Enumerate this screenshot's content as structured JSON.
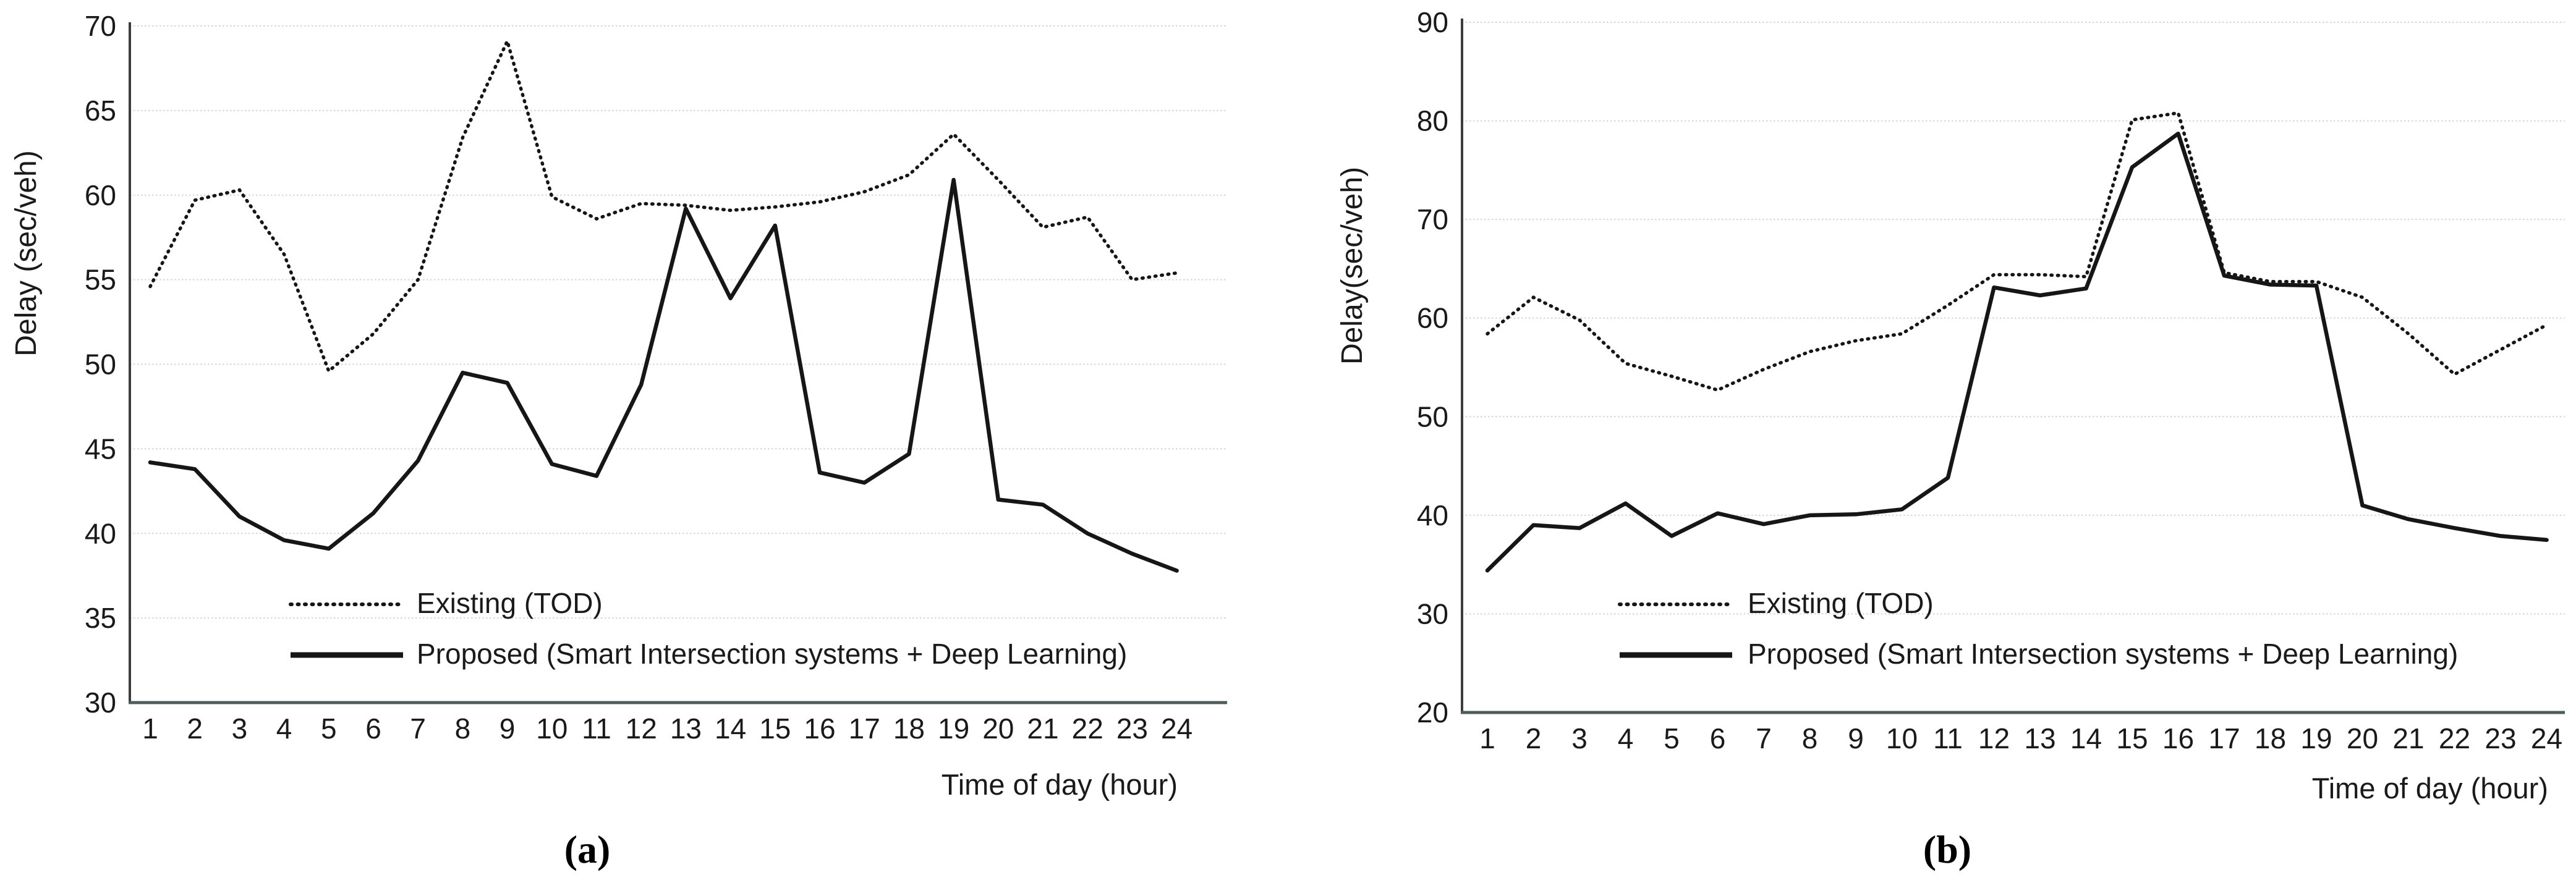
{
  "figure": {
    "background_color": "#ffffff",
    "text_color": "#1a1a1a",
    "gridline_color": "#d2d6d6",
    "x_axis_color": "#4e5c5c",
    "y_axis_color": "#3d3d3d",
    "series_color": "#161616"
  },
  "chart_data": [
    {
      "id": "a",
      "type": "line",
      "caption": "(a)",
      "xlabel": "Time of day (hour)",
      "ylabel": "Delay (sec/veh)",
      "ylim": [
        30,
        70
      ],
      "yticks": [
        30,
        35,
        40,
        45,
        50,
        55,
        60,
        65,
        70
      ],
      "x": [
        1,
        2,
        3,
        4,
        5,
        6,
        7,
        8,
        9,
        10,
        11,
        12,
        13,
        14,
        15,
        16,
        17,
        18,
        19,
        20,
        21,
        22,
        23,
        24
      ],
      "grid": true,
      "legend_position": "inside-bottom-left",
      "series": [
        {
          "name": "Existing (TOD)",
          "style": "dotted",
          "values": [
            54.6,
            59.7,
            60.3,
            56.5,
            49.6,
            51.8,
            55.0,
            63.4,
            69.1,
            59.9,
            58.6,
            59.5,
            59.4,
            59.1,
            59.3,
            59.6,
            60.2,
            61.2,
            63.6,
            60.9,
            58.1,
            58.7,
            55.0,
            55.4
          ]
        },
        {
          "name": "Proposed (Smart Intersection systems + Deep Learning)",
          "style": "solid",
          "values": [
            44.2,
            43.8,
            41.0,
            39.6,
            39.1,
            41.2,
            44.3,
            49.5,
            48.9,
            44.1,
            43.4,
            48.8,
            59.2,
            53.9,
            58.2,
            43.6,
            43.0,
            44.7,
            60.9,
            42.0,
            41.7,
            40.0,
            38.8,
            37.8
          ]
        }
      ]
    },
    {
      "id": "b",
      "type": "line",
      "caption": "(b)",
      "xlabel": "Time of day (hour)",
      "ylabel": "Delay(sec/veh)",
      "ylim": [
        20,
        90
      ],
      "yticks": [
        20,
        30,
        40,
        50,
        60,
        70,
        80,
        90
      ],
      "x": [
        1,
        2,
        3,
        4,
        5,
        6,
        7,
        8,
        9,
        10,
        11,
        12,
        13,
        14,
        15,
        16,
        17,
        18,
        19,
        20,
        21,
        22,
        23,
        24
      ],
      "grid": true,
      "legend_position": "inside-bottom-left",
      "series": [
        {
          "name": "Existing (TOD)",
          "style": "dotted",
          "values": [
            58.4,
            62.1,
            59.8,
            55.4,
            54.1,
            52.7,
            54.8,
            56.6,
            57.7,
            58.4,
            61.3,
            64.4,
            64.4,
            64.2,
            80.1,
            80.8,
            64.6,
            63.7,
            63.7,
            62.1,
            58.4,
            54.3,
            56.8,
            59.3
          ]
        },
        {
          "name": "Proposed (Smart Intersection systems + Deep Learning)",
          "style": "solid",
          "values": [
            34.4,
            39.0,
            38.7,
            41.2,
            37.9,
            40.2,
            39.1,
            40.0,
            40.1,
            40.6,
            43.8,
            63.1,
            62.3,
            63.0,
            75.3,
            78.7,
            64.3,
            63.4,
            63.3,
            41.0,
            39.6,
            38.7,
            37.9,
            37.5
          ]
        }
      ]
    }
  ]
}
